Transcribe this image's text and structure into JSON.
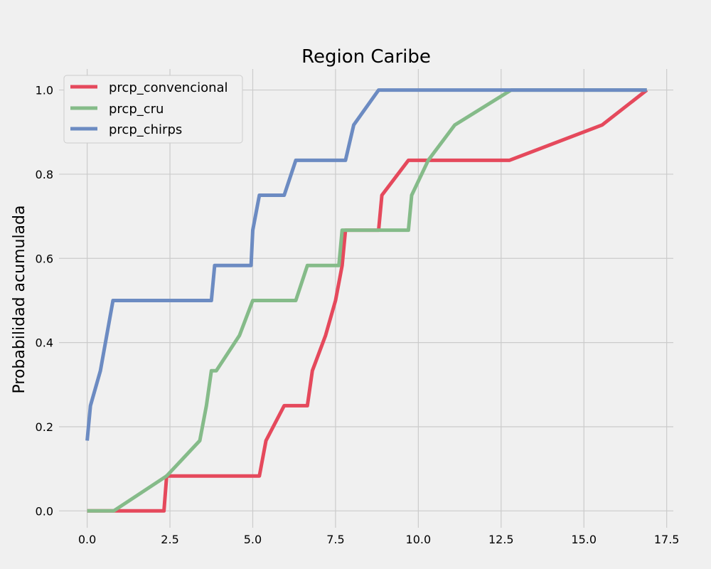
{
  "chart_data": {
    "type": "line",
    "title": "Region Caribe",
    "xlabel": "",
    "ylabel": "Probabilidad acumulada",
    "xlim": [
      -0.85,
      17.7
    ],
    "ylim": [
      -0.04,
      1.05
    ],
    "xticks": [
      "0.0",
      "2.5",
      "5.0",
      "7.5",
      "10.0",
      "12.5",
      "15.0",
      "17.5"
    ],
    "yticks": [
      "0.0",
      "0.2",
      "0.4",
      "0.6",
      "0.8",
      "1.0"
    ],
    "grid": true,
    "legend_position": "upper-left",
    "series": [
      {
        "name": "prcp_convencional",
        "color": "#e5495c",
        "x": [
          0.0,
          0.8,
          2.32,
          2.4,
          5.2,
          5.4,
          5.95,
          6.65,
          6.8,
          7.2,
          7.5,
          7.7,
          7.8,
          8.8,
          8.9,
          9.7,
          12.75,
          15.55,
          16.9
        ],
        "y": [
          0.0,
          0.0,
          0.0,
          0.083,
          0.083,
          0.167,
          0.25,
          0.25,
          0.333,
          0.417,
          0.5,
          0.583,
          0.667,
          0.667,
          0.75,
          0.833,
          0.833,
          0.917,
          1.0
        ]
      },
      {
        "name": "prcp_cru",
        "color": "#85bb89",
        "x": [
          0.0,
          0.8,
          2.4,
          3.4,
          3.6,
          3.75,
          3.9,
          4.6,
          5.0,
          6.3,
          6.65,
          7.6,
          7.7,
          9.7,
          9.8,
          10.3,
          11.1,
          12.8,
          16.9
        ],
        "y": [
          0.0,
          0.0,
          0.083,
          0.167,
          0.25,
          0.333,
          0.333,
          0.417,
          0.5,
          0.5,
          0.583,
          0.583,
          0.667,
          0.667,
          0.75,
          0.833,
          0.917,
          1.0,
          1.0
        ]
      },
      {
        "name": "prcp_chirps",
        "color": "#6c8bc2",
        "x": [
          0.0,
          0.1,
          0.4,
          0.78,
          3.75,
          3.85,
          4.95,
          5.0,
          5.2,
          5.95,
          6.3,
          7.8,
          8.05,
          8.8,
          12.5,
          16.9
        ],
        "y": [
          0.167,
          0.25,
          0.333,
          0.5,
          0.5,
          0.583,
          0.583,
          0.667,
          0.75,
          0.75,
          0.833,
          0.833,
          0.917,
          1.0,
          1.0,
          1.0
        ]
      }
    ]
  }
}
